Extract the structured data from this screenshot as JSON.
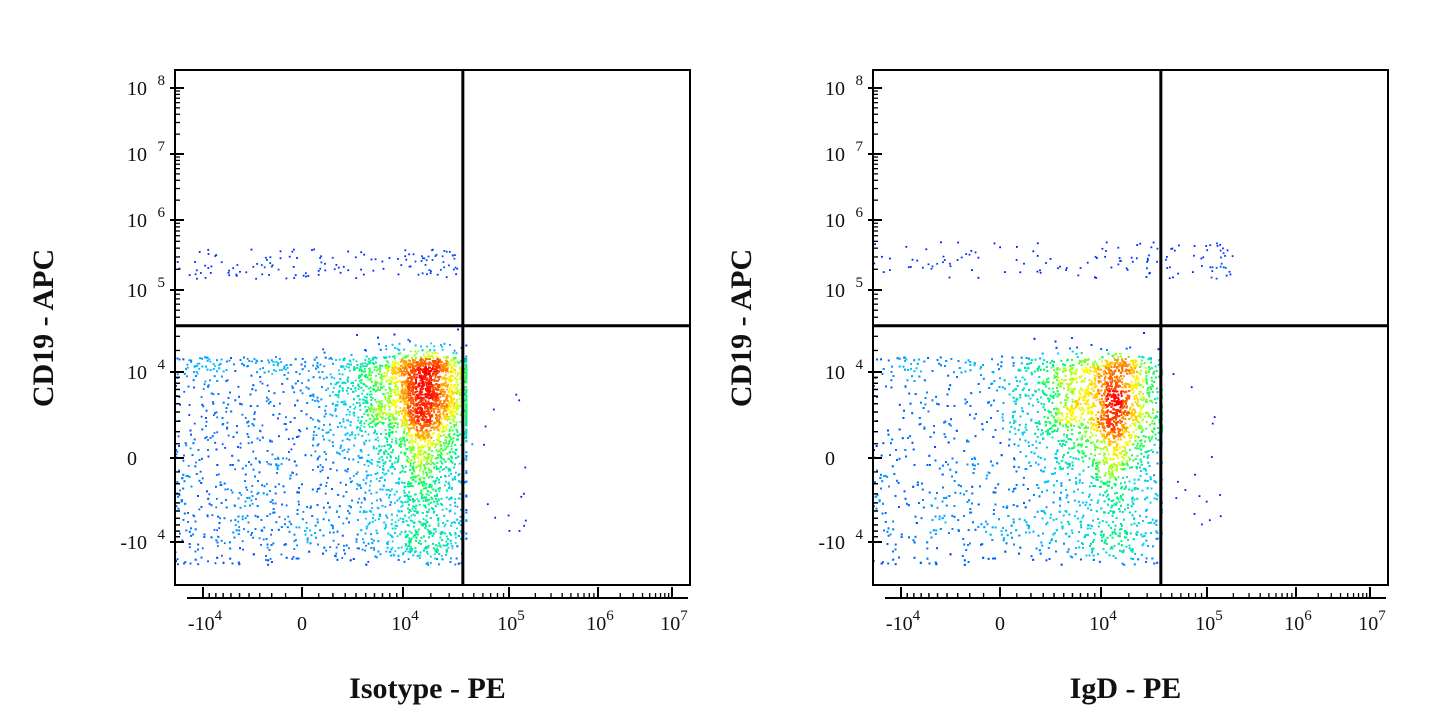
{
  "chart_data": [
    {
      "type": "scatter",
      "subtype": "flow-cytometry-density-dot-plot",
      "xlabel": "Isotype - PE",
      "ylabel": "CD19 - APC",
      "x_ticks": [
        {
          "base": "-10",
          "exp": "4"
        },
        {
          "base": "0",
          "exp": ""
        },
        {
          "base": "10",
          "exp": "4"
        },
        {
          "base": "10",
          "exp": "5"
        },
        {
          "base": "10",
          "exp": "6"
        },
        {
          "base": "10",
          "exp": "7"
        }
      ],
      "y_ticks": [
        {
          "base": "-10",
          "exp": "4"
        },
        {
          "base": "0",
          "exp": ""
        },
        {
          "base": "10",
          "exp": "4"
        },
        {
          "base": "10",
          "exp": "5"
        },
        {
          "base": "10",
          "exp": "6"
        },
        {
          "base": "10",
          "exp": "7"
        },
        {
          "base": "10",
          "exp": "8"
        }
      ],
      "x_scale": "biexponential",
      "y_scale": "biexponential",
      "x_range": [
        -20000,
        10000000
      ],
      "y_range": [
        -20000,
        100000000
      ],
      "quadrant_gate": {
        "x": 40000,
        "y": 40000
      },
      "color_scale": [
        "#0000ff",
        "#00c8ff",
        "#00ff60",
        "#ffff00",
        "#ff8000",
        "#ff0000"
      ],
      "populations": [
        {
          "x_range": [
            -20000,
            40000
          ],
          "y_range": [
            -15000,
            17000
          ],
          "density": "high",
          "peak": {
            "x": 15000,
            "y": 7000
          }
        },
        {
          "x_range": [
            -20000,
            35000
          ],
          "y_range": [
            150000,
            400000
          ],
          "density": "sparse"
        }
      ]
    },
    {
      "type": "scatter",
      "subtype": "flow-cytometry-density-dot-plot",
      "xlabel": "IgD - PE",
      "ylabel": "CD19 - APC",
      "x_ticks": [
        {
          "base": "-10",
          "exp": "4"
        },
        {
          "base": "0",
          "exp": ""
        },
        {
          "base": "10",
          "exp": "4"
        },
        {
          "base": "10",
          "exp": "5"
        },
        {
          "base": "10",
          "exp": "6"
        },
        {
          "base": "10",
          "exp": "7"
        }
      ],
      "y_ticks": [
        {
          "base": "-10",
          "exp": "4"
        },
        {
          "base": "0",
          "exp": ""
        },
        {
          "base": "10",
          "exp": "4"
        },
        {
          "base": "10",
          "exp": "5"
        },
        {
          "base": "10",
          "exp": "6"
        },
        {
          "base": "10",
          "exp": "7"
        },
        {
          "base": "10",
          "exp": "8"
        }
      ],
      "x_scale": "biexponential",
      "y_scale": "biexponential",
      "x_range": [
        -20000,
        10000000
      ],
      "y_range": [
        -20000,
        100000000
      ],
      "quadrant_gate": {
        "x": 40000,
        "y": 40000
      },
      "color_scale": [
        "#0000ff",
        "#00c8ff",
        "#00ff60",
        "#ffff00",
        "#ff8000",
        "#ff0000"
      ],
      "populations": [
        {
          "x_range": [
            -20000,
            38000
          ],
          "y_range": [
            -15000,
            17000
          ],
          "density": "high",
          "peak": {
            "x": 11000,
            "y": 6000
          }
        },
        {
          "x_range": [
            -20000,
            200000
          ],
          "y_range": [
            150000,
            500000
          ],
          "density": "sparse"
        }
      ]
    }
  ]
}
